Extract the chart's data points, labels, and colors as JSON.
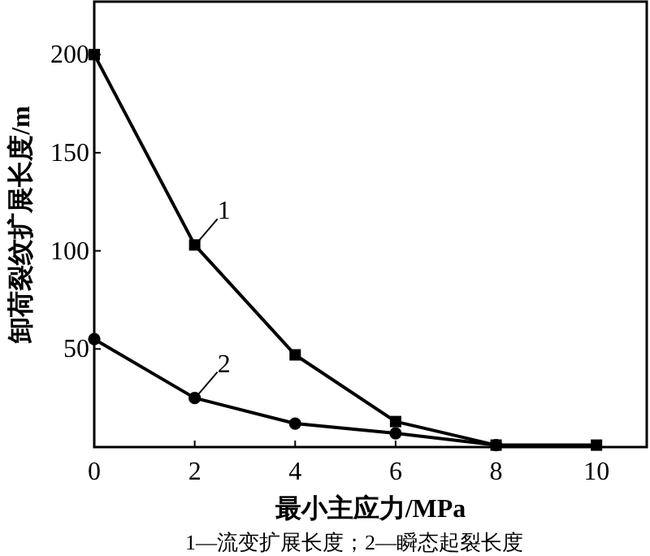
{
  "chart_data": {
    "type": "line",
    "xlabel": "最小主应力/MPa",
    "ylabel": "卸荷裂纹扩展长度/m",
    "xlim": [
      0,
      11
    ],
    "xticks": [
      0,
      2,
      4,
      6,
      8,
      10
    ],
    "ylim": [
      0,
      227
    ],
    "yticks": [
      {
        "value": 0,
        "label": null
      },
      50,
      100,
      150,
      200
    ],
    "line_style": "solid",
    "grid": false,
    "series": [
      {
        "name": "1",
        "color": "#000000",
        "marker": "square",
        "x": [
          0,
          2,
          4,
          6,
          8,
          10
        ],
        "values": [
          200,
          103,
          47,
          13,
          1,
          1
        ]
      },
      {
        "name": "2",
        "color": "#000000",
        "marker": "circle",
        "x": [
          0,
          2,
          4,
          6,
          8
        ],
        "values": [
          55,
          25,
          12,
          7,
          1
        ]
      }
    ],
    "annotations": [
      "1—流变扩展长度；2—瞬态起裂长度"
    ]
  }
}
